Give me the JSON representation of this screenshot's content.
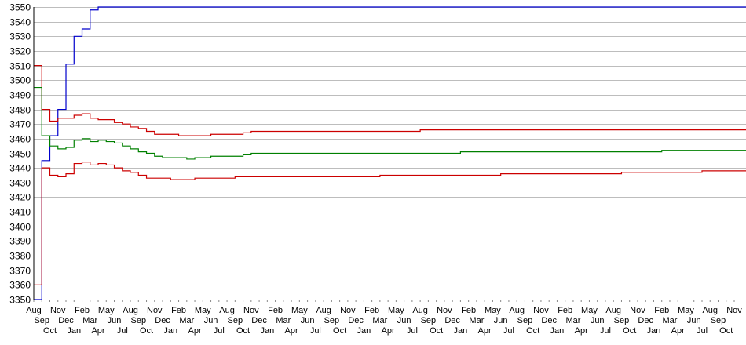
{
  "chart_data": {
    "type": "line",
    "title": "",
    "xlabel": "",
    "ylabel": "",
    "ylim": [
      3350,
      3550
    ],
    "yticks": [
      3350,
      3360,
      3370,
      3380,
      3390,
      3400,
      3410,
      3420,
      3430,
      3440,
      3450,
      3460,
      3470,
      3480,
      3490,
      3500,
      3510,
      3520,
      3530,
      3540,
      3550
    ],
    "grid": "horizontal",
    "legend": "none",
    "categories": [
      "Aug",
      "Sep",
      "Oct",
      "Nov",
      "Dec",
      "Jan",
      "Feb",
      "Mar",
      "Apr",
      "May",
      "Jun",
      "Jul",
      "Aug",
      "Sep",
      "Oct",
      "Nov",
      "Dec",
      "Jan",
      "Feb",
      "Mar",
      "Apr",
      "May",
      "Jun",
      "Jul",
      "Aug",
      "Sep",
      "Oct",
      "Nov",
      "Dec",
      "Jan",
      "Feb",
      "Mar",
      "Apr",
      "May",
      "Jun",
      "Jul",
      "Aug",
      "Sep",
      "Oct",
      "Nov",
      "Dec",
      "Jan",
      "Feb",
      "Mar",
      "Apr",
      "May",
      "Jun",
      "Jul",
      "Aug",
      "Sep",
      "Oct",
      "Nov",
      "Dec",
      "Jan",
      "Feb",
      "Mar",
      "Apr",
      "May",
      "Jun",
      "Jul",
      "Aug",
      "Sep",
      "Oct",
      "Nov",
      "Dec",
      "Jan",
      "Feb",
      "Mar",
      "Apr",
      "May",
      "Jun",
      "Jul",
      "Aug",
      "Sep",
      "Oct",
      "Nov",
      "Dec",
      "Jan",
      "Feb",
      "Mar",
      "Apr",
      "May",
      "Jun",
      "Jul",
      "Aug",
      "Sep",
      "Oct",
      "Nov"
    ],
    "series": [
      {
        "color": "#0000cc",
        "values": [
          3350,
          3445,
          3462,
          3480,
          3511,
          3530,
          3535,
          3548,
          3550,
          3550,
          3550,
          3550,
          3550,
          3550,
          3550,
          3550,
          3550,
          3550,
          3550,
          3550,
          3550,
          3550,
          3550,
          3550,
          3550,
          3550,
          3550,
          3550,
          3550,
          3550,
          3550,
          3550,
          3550,
          3550,
          3550,
          3550,
          3550,
          3550,
          3550,
          3550,
          3550,
          3550,
          3550,
          3550,
          3550,
          3550,
          3550,
          3550,
          3550,
          3550,
          3550,
          3550,
          3550,
          3550,
          3550,
          3550,
          3550,
          3550,
          3550,
          3550,
          3550,
          3550,
          3550,
          3550,
          3550,
          3550,
          3550,
          3550,
          3550,
          3550,
          3550,
          3550,
          3550,
          3550,
          3550,
          3550,
          3550,
          3550,
          3550,
          3550,
          3550,
          3550,
          3550,
          3550,
          3550,
          3550,
          3550,
          3550
        ]
      },
      {
        "color": "#cc0000",
        "values": [
          3510,
          3480,
          3472,
          3474,
          3474,
          3476,
          3477,
          3474,
          3473,
          3473,
          3471,
          3470,
          3468,
          3467,
          3465,
          3463,
          3463,
          3463,
          3462,
          3462,
          3462,
          3462,
          3463,
          3463,
          3463,
          3463,
          3464,
          3465,
          3465,
          3465,
          3465,
          3465,
          3465,
          3465,
          3465,
          3465,
          3465,
          3465,
          3465,
          3465,
          3465,
          3465,
          3465,
          3465,
          3465,
          3465,
          3465,
          3465,
          3466,
          3466,
          3466,
          3466,
          3466,
          3466,
          3466,
          3466,
          3466,
          3466,
          3466,
          3466,
          3466,
          3466,
          3466,
          3466,
          3466,
          3466,
          3466,
          3466,
          3466,
          3466,
          3466,
          3466,
          3466,
          3466,
          3466,
          3466,
          3466,
          3466,
          3466,
          3466,
          3466,
          3466,
          3466,
          3466,
          3466,
          3466,
          3466,
          3466
        ]
      },
      {
        "color": "#008000",
        "values": [
          3495,
          3462,
          3455,
          3453,
          3454,
          3459,
          3460,
          3458,
          3459,
          3458,
          3457,
          3455,
          3453,
          3451,
          3450,
          3448,
          3447,
          3447,
          3447,
          3446,
          3447,
          3447,
          3448,
          3448,
          3448,
          3448,
          3449,
          3450,
          3450,
          3450,
          3450,
          3450,
          3450,
          3450,
          3450,
          3450,
          3450,
          3450,
          3450,
          3450,
          3450,
          3450,
          3450,
          3450,
          3450,
          3450,
          3450,
          3450,
          3450,
          3450,
          3450,
          3450,
          3450,
          3451,
          3451,
          3451,
          3451,
          3451,
          3451,
          3451,
          3451,
          3451,
          3451,
          3451,
          3451,
          3451,
          3451,
          3451,
          3451,
          3451,
          3451,
          3451,
          3451,
          3451,
          3451,
          3451,
          3451,
          3451,
          3452,
          3452,
          3452,
          3452,
          3452,
          3452,
          3452,
          3452,
          3452,
          3452
        ]
      },
      {
        "color": "#cc0000",
        "values": [
          3360,
          3440,
          3435,
          3434,
          3436,
          3443,
          3444,
          3442,
          3443,
          3442,
          3440,
          3438,
          3437,
          3435,
          3433,
          3433,
          3433,
          3432,
          3432,
          3432,
          3433,
          3433,
          3433,
          3433,
          3433,
          3434,
          3434,
          3434,
          3434,
          3434,
          3434,
          3434,
          3434,
          3434,
          3434,
          3434,
          3434,
          3434,
          3434,
          3434,
          3434,
          3434,
          3434,
          3435,
          3435,
          3435,
          3435,
          3435,
          3435,
          3435,
          3435,
          3435,
          3435,
          3435,
          3435,
          3435,
          3435,
          3435,
          3436,
          3436,
          3436,
          3436,
          3436,
          3436,
          3436,
          3436,
          3436,
          3436,
          3436,
          3436,
          3436,
          3436,
          3436,
          3437,
          3437,
          3437,
          3437,
          3437,
          3437,
          3437,
          3437,
          3437,
          3437,
          3438,
          3438,
          3438,
          3438,
          3438
        ]
      }
    ]
  }
}
